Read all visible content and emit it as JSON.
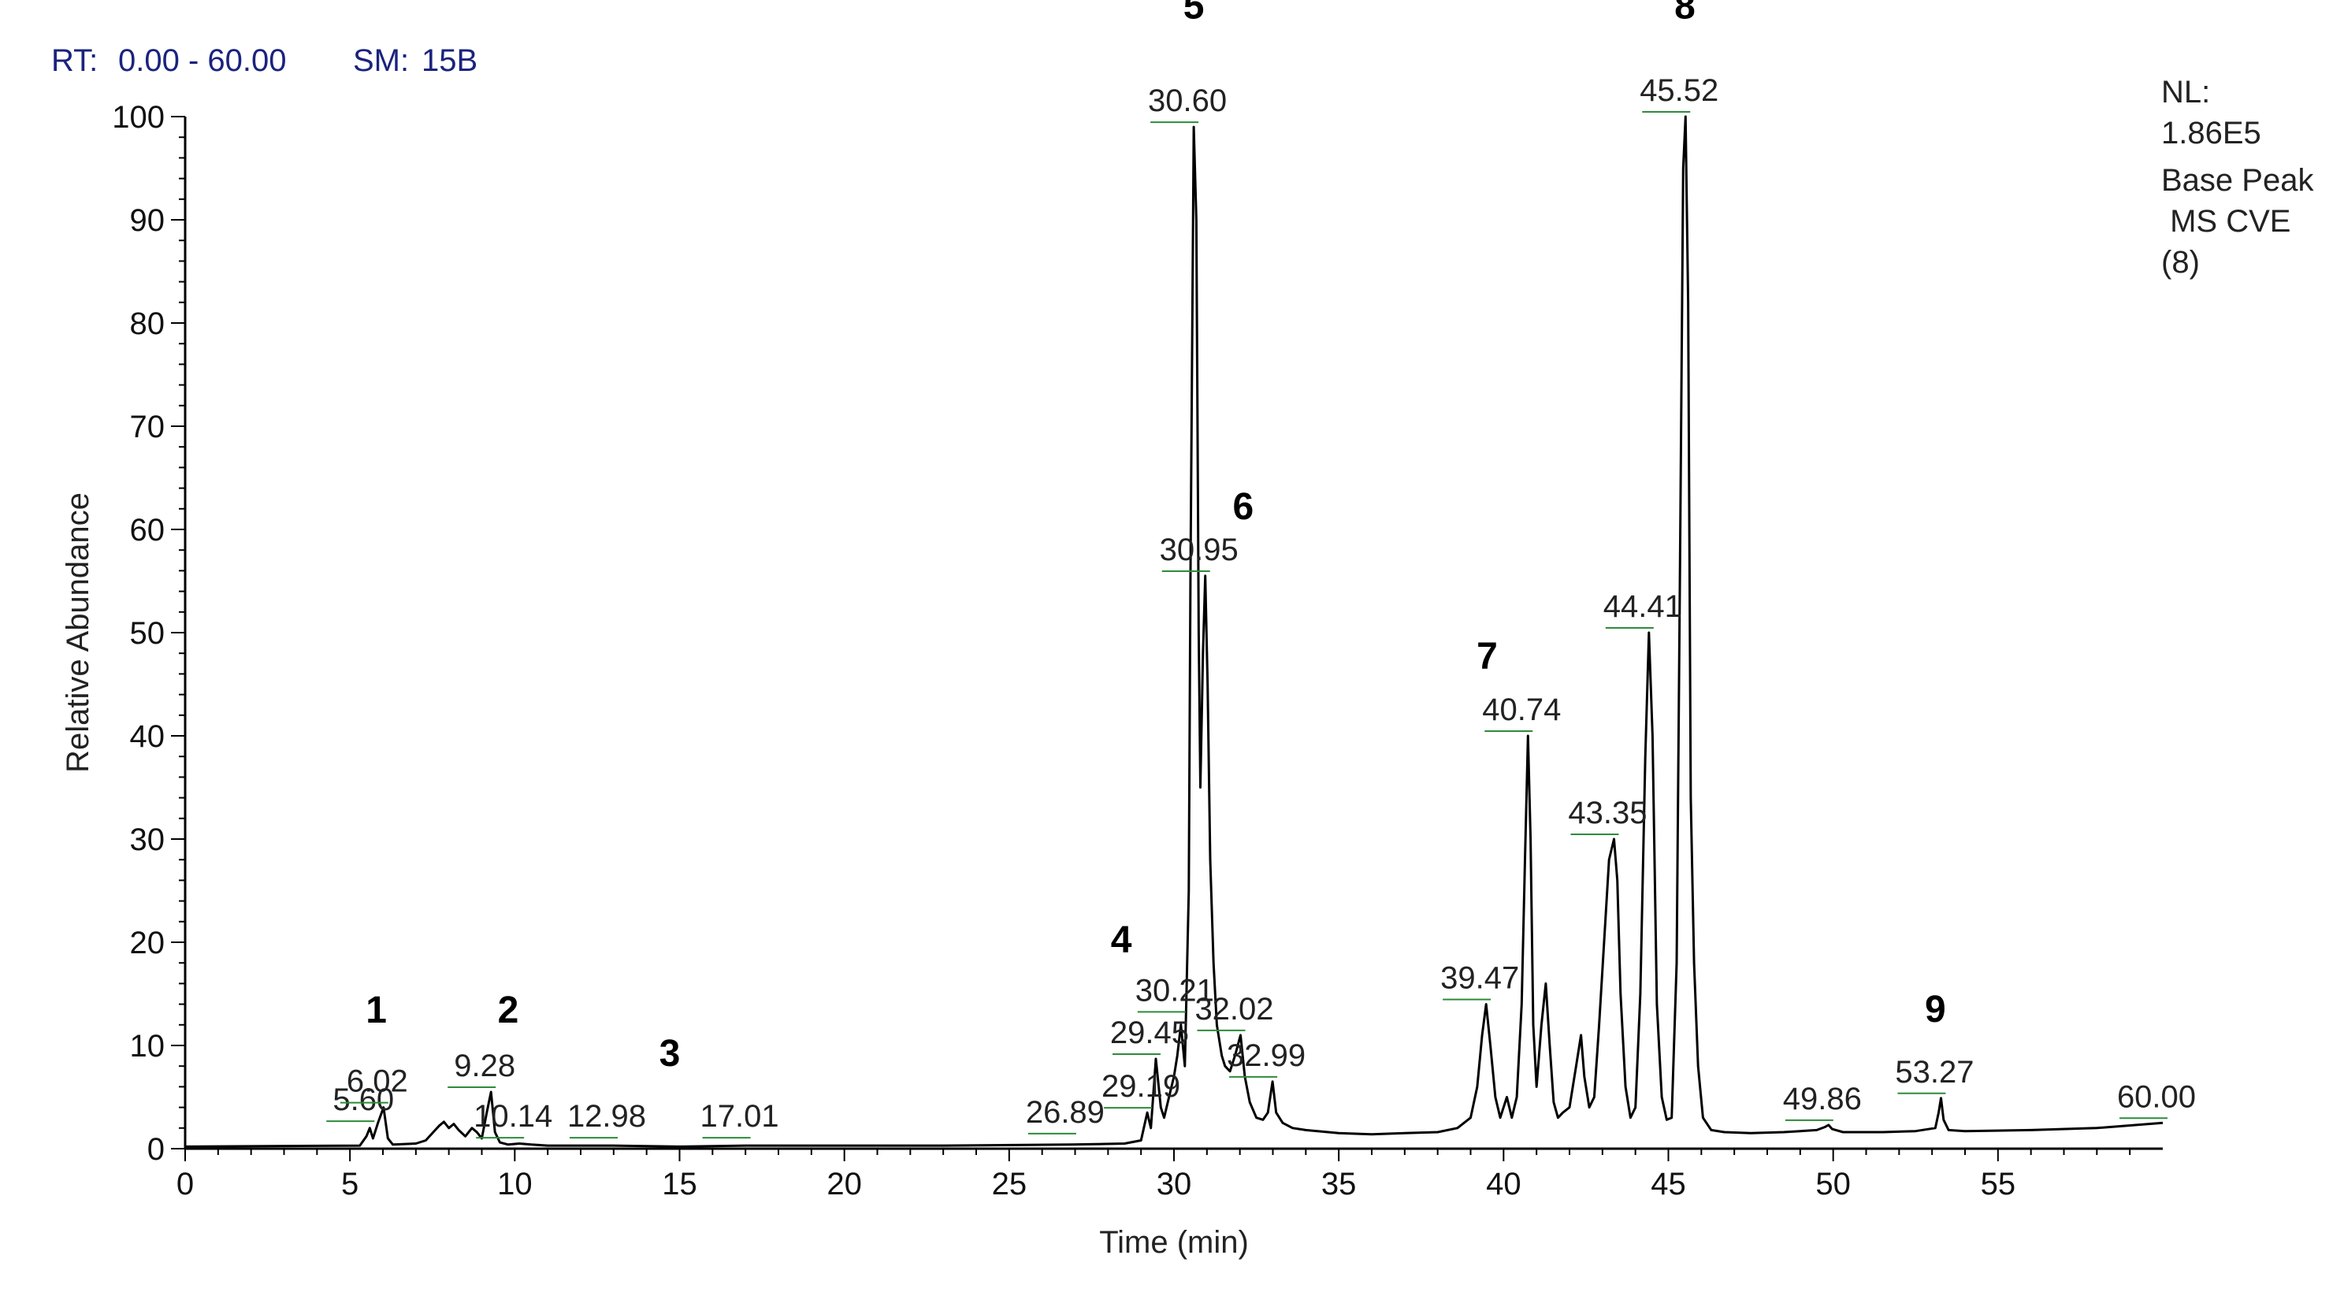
{
  "header": {
    "rt_label": "RT:",
    "rt_range": "0.00 - 60.00",
    "sm_label": "SM:",
    "sm_value": "15B",
    "colors": {
      "label": "#1a237e",
      "value": "#1a237e"
    }
  },
  "info": {
    "nl_label": "NL:",
    "nl_value": "1.86E5",
    "line3": "Base Peak",
    "line4": " MS CVE",
    "line5": "(8)"
  },
  "chart_data": {
    "type": "line",
    "xlabel": "Time (min)",
    "ylabel": "Relative Abundance",
    "xlim": [
      0,
      60
    ],
    "ylim": [
      0,
      100
    ],
    "xticks": [
      0,
      5,
      10,
      15,
      20,
      25,
      30,
      35,
      40,
      45,
      50,
      55
    ],
    "yticks": [
      0,
      10,
      20,
      30,
      40,
      50,
      60,
      70,
      80,
      90,
      100
    ],
    "grid": false,
    "line_color": "#000000",
    "tag_color": "#2e8b3a",
    "peak_labels": [
      {
        "text": "5.60",
        "x": 5.6,
        "y": 2.2
      },
      {
        "text": "6.02",
        "x": 6.02,
        "y": 4.0
      },
      {
        "text": "9.28",
        "x": 9.28,
        "y": 5.5
      },
      {
        "text": "10.14",
        "x": 10.14,
        "y": 0.6
      },
      {
        "text": "12.98",
        "x": 12.98,
        "y": 0.6
      },
      {
        "text": "17.01",
        "x": 17.01,
        "y": 0.6
      },
      {
        "text": "26.89",
        "x": 26.89,
        "y": 1.0
      },
      {
        "text": "29.19",
        "x": 29.19,
        "y": 3.5
      },
      {
        "text": "29.45",
        "x": 29.45,
        "y": 8.7
      },
      {
        "text": "30.21",
        "x": 30.21,
        "y": 12.8
      },
      {
        "text": "30.60",
        "x": 30.6,
        "y": 99.0
      },
      {
        "text": "30.95",
        "x": 30.95,
        "y": 55.5
      },
      {
        "text": "32.02",
        "x": 32.02,
        "y": 11.0
      },
      {
        "text": "32.99",
        "x": 32.99,
        "y": 6.5
      },
      {
        "text": "39.47",
        "x": 39.47,
        "y": 14.0
      },
      {
        "text": "40.74",
        "x": 40.74,
        "y": 40.0
      },
      {
        "text": "43.35",
        "x": 43.35,
        "y": 30.0
      },
      {
        "text": "44.41",
        "x": 44.41,
        "y": 50.0
      },
      {
        "text": "45.52",
        "x": 45.52,
        "y": 100.0
      },
      {
        "text": "49.86",
        "x": 49.86,
        "y": 2.3
      },
      {
        "text": "53.27",
        "x": 53.27,
        "y": 4.9
      },
      {
        "text": "60.00",
        "x": 60.0,
        "y": 2.5
      }
    ],
    "peak_numbers": [
      {
        "text": "1",
        "x": 5.8,
        "y": 12.2
      },
      {
        "text": "2",
        "x": 9.8,
        "y": 12.2
      },
      {
        "text": "3",
        "x": 14.7,
        "y": 8.0
      },
      {
        "text": "4",
        "x": 28.4,
        "y": 19.0
      },
      {
        "text": "5",
        "x": 30.6,
        "y": 109.5
      },
      {
        "text": "6",
        "x": 32.1,
        "y": 61.0
      },
      {
        "text": "7",
        "x": 39.5,
        "y": 46.5
      },
      {
        "text": "8",
        "x": 45.5,
        "y": 109.5
      },
      {
        "text": "9",
        "x": 53.1,
        "y": 12.3
      }
    ],
    "series": [
      {
        "x": [
          0,
          5.3,
          5.5,
          5.6,
          5.7,
          5.85,
          6.02,
          6.15,
          6.3,
          7.0,
          7.3,
          7.5,
          7.7,
          7.85,
          8.0,
          8.15,
          8.3,
          8.5,
          8.7,
          8.85,
          9.0,
          9.15,
          9.28,
          9.4,
          9.55,
          9.8,
          10.14,
          10.5,
          11.0,
          12.98,
          15.0,
          17.01,
          20.0,
          23.0,
          26.89,
          28.5,
          29.0,
          29.19,
          29.3,
          29.45,
          29.6,
          29.7,
          29.85,
          30.0,
          30.1,
          30.21,
          30.33,
          30.45,
          30.5,
          30.6,
          30.68,
          30.75,
          30.8,
          30.88,
          30.95,
          31.02,
          31.1,
          31.2,
          31.3,
          31.45,
          31.55,
          31.7,
          31.85,
          32.02,
          32.15,
          32.3,
          32.5,
          32.7,
          32.85,
          32.99,
          33.1,
          33.3,
          33.6,
          34.0,
          35.0,
          36.0,
          37.0,
          38.0,
          38.6,
          39.0,
          39.2,
          39.35,
          39.47,
          39.6,
          39.75,
          39.9,
          40.1,
          40.25,
          40.4,
          40.55,
          40.65,
          40.74,
          40.82,
          40.9,
          41.0,
          41.15,
          41.28,
          41.4,
          41.52,
          41.65,
          41.8,
          42.0,
          42.2,
          42.35,
          42.45,
          42.6,
          42.75,
          42.9,
          43.05,
          43.2,
          43.35,
          43.45,
          43.55,
          43.7,
          43.85,
          44.0,
          44.15,
          44.3,
          44.41,
          44.52,
          44.65,
          44.8,
          44.95,
          45.1,
          45.25,
          45.35,
          45.45,
          45.52,
          45.6,
          45.68,
          45.78,
          45.9,
          46.05,
          46.3,
          46.7,
          47.5,
          48.5,
          49.5,
          49.75,
          49.86,
          49.97,
          50.3,
          51.5,
          52.5,
          53.1,
          53.2,
          53.27,
          53.35,
          53.5,
          54.0,
          56.0,
          58.0,
          60.0
        ],
        "y": [
          0.2,
          0.3,
          1.2,
          2.0,
          1.0,
          2.5,
          4.0,
          1.0,
          0.4,
          0.5,
          0.8,
          1.5,
          2.2,
          2.6,
          2.0,
          2.4,
          1.8,
          1.2,
          2.0,
          1.6,
          1.0,
          3.5,
          5.5,
          1.6,
          0.6,
          0.4,
          0.5,
          0.4,
          0.3,
          0.3,
          0.2,
          0.3,
          0.3,
          0.3,
          0.4,
          0.5,
          0.8,
          3.5,
          2.0,
          8.7,
          4.0,
          3.0,
          5.0,
          7.0,
          9.0,
          12.0,
          8.0,
          25.0,
          55.0,
          99.0,
          90.0,
          50.0,
          35.0,
          48.0,
          55.5,
          45.0,
          28.0,
          18.0,
          12.0,
          9.0,
          8.0,
          7.5,
          9.0,
          11.0,
          7.0,
          4.5,
          3.0,
          2.8,
          3.5,
          6.5,
          3.5,
          2.5,
          2.0,
          1.8,
          1.5,
          1.4,
          1.5,
          1.6,
          2.0,
          3.0,
          6.0,
          11.0,
          14.0,
          10.0,
          5.0,
          3.0,
          5.0,
          3.0,
          5.0,
          14.0,
          28.0,
          40.0,
          30.0,
          12.0,
          6.0,
          12.0,
          16.0,
          10.0,
          4.5,
          3.0,
          3.5,
          4.0,
          8.0,
          11.0,
          7.0,
          4.0,
          5.0,
          12.0,
          20.0,
          28.0,
          30.0,
          26.0,
          15.0,
          6.0,
          3.0,
          4.0,
          15.0,
          38.0,
          50.0,
          40.0,
          14.0,
          5.0,
          2.8,
          3.0,
          18.0,
          55.0,
          95.0,
          100.0,
          82.0,
          34.0,
          18.0,
          8.0,
          3.0,
          1.8,
          1.6,
          1.5,
          1.6,
          1.8,
          2.1,
          2.3,
          1.9,
          1.6,
          1.6,
          1.7,
          2.0,
          3.5,
          4.9,
          2.8,
          1.8,
          1.7,
          1.8,
          2.0,
          2.5
        ]
      }
    ]
  }
}
